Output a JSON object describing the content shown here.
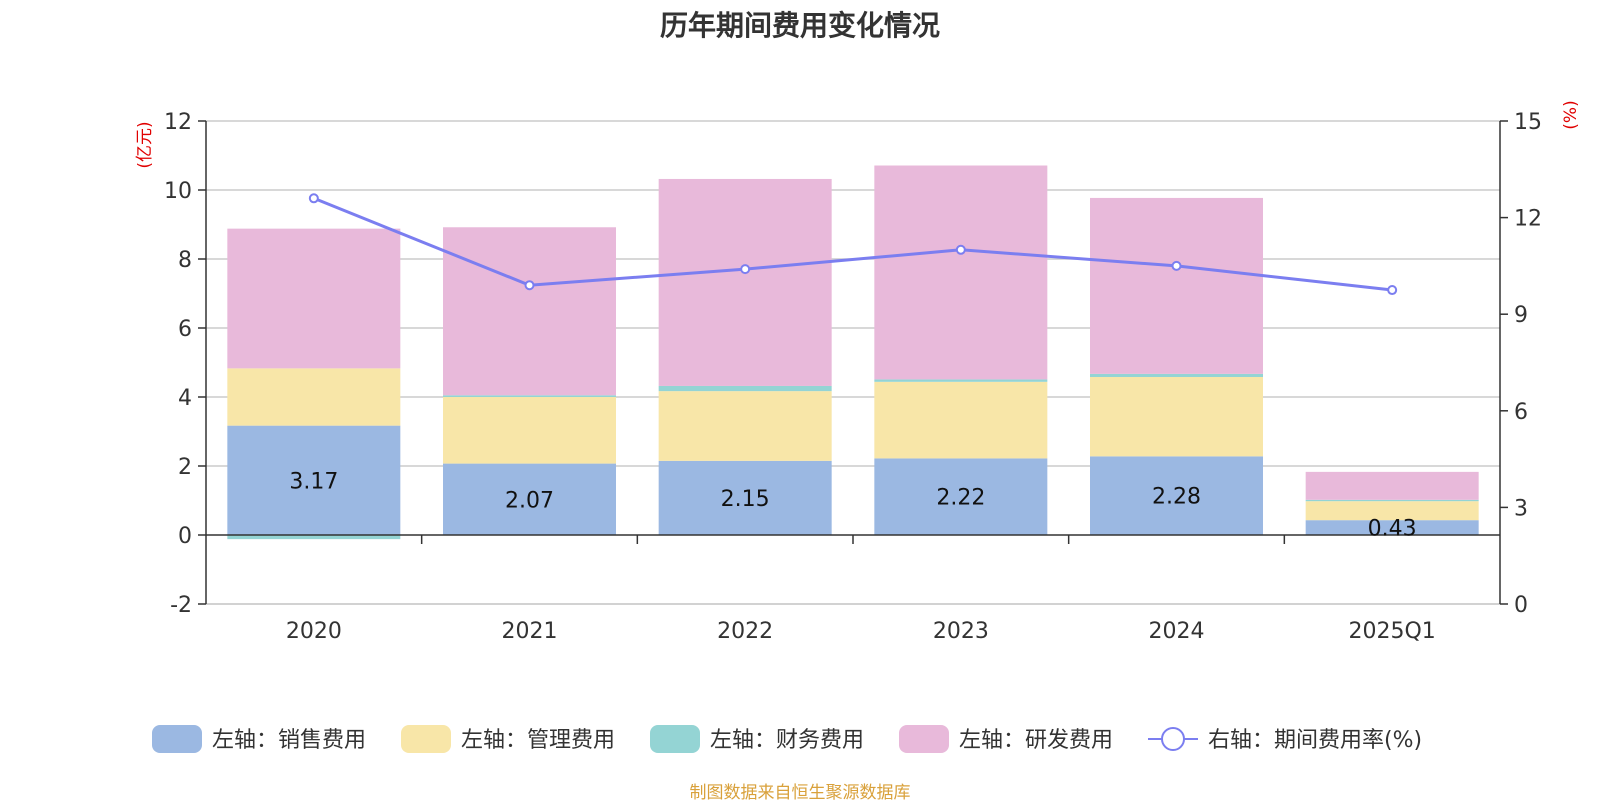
{
  "title": "历年期间费用变化情况",
  "footer": "制图数据来自恒生聚源数据库",
  "chart_data": {
    "type": "bar",
    "stacked": true,
    "categories": [
      "2020",
      "2021",
      "2022",
      "2023",
      "2024",
      "2025Q1"
    ],
    "left_axis": {
      "unit": "(亿元)",
      "ylim": [
        -2,
        12
      ],
      "ticks": [
        -2,
        0,
        2,
        4,
        6,
        8,
        10,
        12
      ]
    },
    "right_axis": {
      "unit": "(%)",
      "ylim": [
        0,
        15
      ],
      "ticks": [
        0,
        3,
        6,
        9,
        12,
        15
      ]
    },
    "grid": true,
    "legend_position": "bottom",
    "series": [
      {
        "name": "左轴：销售费用",
        "axis": "left",
        "type": "bar",
        "color": "#9bb8e2",
        "values": [
          3.17,
          2.07,
          2.15,
          2.22,
          2.28,
          0.43
        ],
        "labels": [
          "3.17",
          "2.07",
          "2.15",
          "2.22",
          "2.28",
          "0.43"
        ]
      },
      {
        "name": "左轴：管理费用",
        "axis": "left",
        "type": "bar",
        "color": "#f8e6a8",
        "values": [
          1.66,
          1.93,
          2.02,
          2.22,
          2.3,
          0.55
        ]
      },
      {
        "name": "左轴：财务费用",
        "axis": "left",
        "type": "bar",
        "color": "#94d4d4",
        "values": [
          -0.12,
          0.05,
          0.15,
          0.07,
          0.09,
          0.04
        ]
      },
      {
        "name": "左轴：研发费用",
        "axis": "left",
        "type": "bar",
        "color": "#e8b9da",
        "values": [
          4.05,
          4.87,
          6.0,
          6.2,
          5.1,
          0.81
        ]
      },
      {
        "name": "右轴：期间费用率(%)",
        "axis": "right",
        "type": "line",
        "color": "#7b7ef0",
        "values": [
          12.6,
          9.9,
          10.4,
          11.0,
          10.5,
          9.75
        ]
      }
    ]
  }
}
